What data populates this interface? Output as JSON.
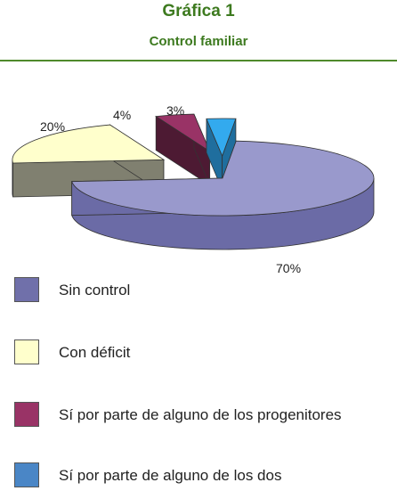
{
  "header": {
    "title": "Gráfica 1",
    "subtitle": "Control familiar"
  },
  "chart_data": {
    "type": "pie",
    "style": "3d-exploded",
    "title": "Gráfica 1",
    "subtitle": "Control familiar",
    "slices": [
      {
        "label": "Sin control",
        "value": 70,
        "display": "70%",
        "color": "#9999cc",
        "side_color": "#6b6ba6"
      },
      {
        "label": "Con déficit",
        "value": 20,
        "display": "20%",
        "color": "#ffffcc",
        "side_color": "#808070"
      },
      {
        "label": "Sí por parte de alguno de los progenitores",
        "value": 4,
        "display": "4%",
        "color": "#993366",
        "side_color": "#4d1a33"
      },
      {
        "label": "Sí por parte de alguno de los dos",
        "value": 3,
        "display": "3%",
        "color": "#33aaee",
        "side_color": "#1f6e9e"
      }
    ],
    "legend_position": "bottom"
  },
  "legend": {
    "items": [
      {
        "label": "Sin control",
        "color": "#7070aa"
      },
      {
        "label": "Con déficit",
        "color": "#ffffcc"
      },
      {
        "label": "Sí por parte de alguno de los progenitores",
        "color": "#993366"
      },
      {
        "label": "Sí por parte de alguno de los dos",
        "color": "#4a86c6"
      }
    ]
  }
}
